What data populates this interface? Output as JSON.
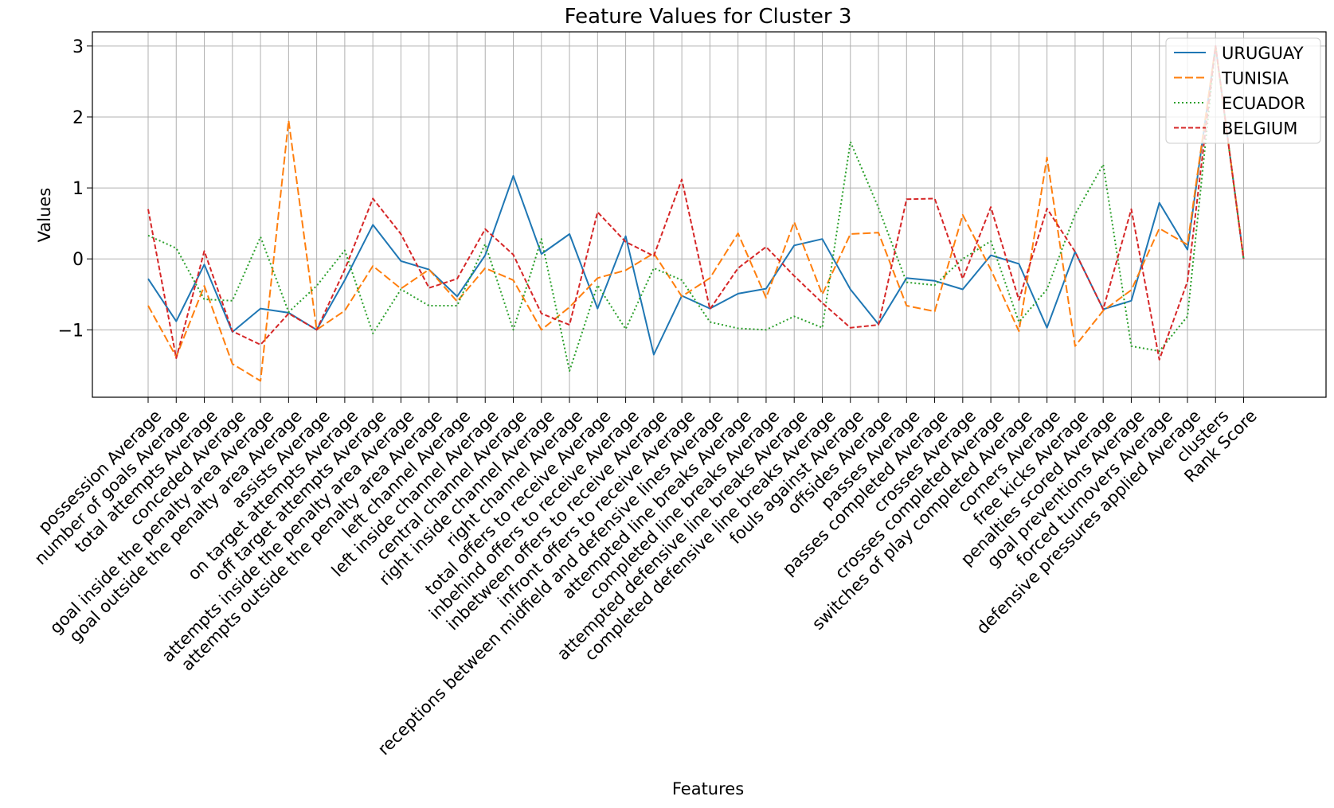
{
  "chart_data": {
    "type": "line",
    "title": "Feature Values for Cluster 3",
    "xlabel": "Features",
    "ylabel": "Values",
    "ylim": [
      -1.95,
      3.2
    ],
    "yticks": [
      -1,
      0,
      1,
      2,
      3
    ],
    "ytick_labels": [
      "−1",
      "0",
      "1",
      "2",
      "3"
    ],
    "grid": true,
    "legend_position": "top-right",
    "categories": [
      "possession Average",
      "number of goals Average",
      "total attempts Average",
      "conceded Average",
      "goal inside the penalty area Average",
      "goal outside the penalty area Average",
      "assists Average",
      "on target attempts Average",
      "off target attempts Average",
      "attempts inside the penalty area  Average",
      "attempts outside the penalty area  Average",
      "left channel Average",
      "left inside channel Average",
      "central channel Average",
      "right inside channel Average",
      "right channel Average",
      "total offers to receive Average",
      "inbehind offers to receive Average",
      "inbetween offers to receive Average",
      "infront offers to receive Average",
      "receptions between midfield and defensive lines Average",
      "attempted line breaks Average",
      "completed line breaks Average",
      "attempted defensive line breaks Average",
      "completed defensive line breaks Average",
      "fouls against Average",
      "offsides Average",
      "passes Average",
      "passes completed Average",
      "crosses Average",
      "crosses completed Average",
      "switches of play completed Average",
      "corners Average",
      "free kicks Average",
      "penalties scored Average",
      "goal preventions Average",
      "forced turnovers Average",
      "defensive pressures applied Average",
      "clusters",
      "Rank Score"
    ],
    "series": [
      {
        "name": "URUGUAY",
        "color": "#1f77b4",
        "dash": "solid",
        "values": [
          -0.28,
          -0.88,
          -0.08,
          -1.03,
          -0.7,
          -0.76,
          -1.0,
          -0.3,
          0.48,
          -0.03,
          -0.15,
          -0.53,
          0.05,
          1.17,
          0.07,
          0.35,
          -0.7,
          0.32,
          -1.35,
          -0.52,
          -0.7,
          -0.49,
          -0.42,
          0.19,
          0.28,
          -0.43,
          -0.92,
          -0.27,
          -0.31,
          -0.43,
          0.05,
          -0.07,
          -0.97,
          0.1,
          -0.71,
          -0.59,
          0.79,
          0.13,
          3.0,
          0.0
        ]
      },
      {
        "name": "TUNISIA",
        "color": "#ff7f0e",
        "dash": "dashed",
        "values": [
          -0.66,
          -1.38,
          -0.38,
          -1.48,
          -1.72,
          1.95,
          -1.0,
          -0.73,
          -0.1,
          -0.42,
          -0.15,
          -0.6,
          -0.13,
          -0.3,
          -1.0,
          -0.68,
          -0.27,
          -0.16,
          0.08,
          -0.53,
          -0.27,
          0.36,
          -0.55,
          0.52,
          -0.5,
          0.35,
          0.37,
          -0.66,
          -0.74,
          0.62,
          -0.15,
          -1.02,
          1.43,
          -1.23,
          -0.73,
          -0.44,
          0.43,
          0.2,
          3.0,
          0.0
        ]
      },
      {
        "name": "ECUADOR",
        "color": "#2ca02c",
        "dash": "dotted",
        "values": [
          0.33,
          0.15,
          -0.57,
          -0.59,
          0.31,
          -0.75,
          -0.38,
          0.12,
          -1.05,
          -0.43,
          -0.66,
          -0.66,
          0.21,
          -1.0,
          0.28,
          -1.58,
          -0.37,
          -0.99,
          -0.13,
          -0.3,
          -0.89,
          -0.98,
          -1.0,
          -0.81,
          -0.97,
          1.65,
          0.72,
          -0.33,
          -0.37,
          0.0,
          0.25,
          -0.89,
          -0.43,
          0.63,
          1.33,
          -1.23,
          -1.3,
          -0.81,
          3.0,
          0.0
        ]
      },
      {
        "name": "BELGIUM",
        "color": "#d62728",
        "dash": "densely-dashed",
        "values": [
          0.7,
          -1.4,
          0.11,
          -1.02,
          -1.21,
          -0.77,
          -1.0,
          -0.15,
          0.85,
          0.35,
          -0.41,
          -0.28,
          0.42,
          0.06,
          -0.77,
          -0.93,
          0.66,
          0.24,
          0.04,
          1.12,
          -0.71,
          -0.13,
          0.17,
          -0.24,
          -0.62,
          -0.97,
          -0.93,
          0.84,
          0.85,
          -0.28,
          0.73,
          -0.58,
          0.71,
          0.1,
          -0.71,
          0.7,
          -1.42,
          -0.32,
          3.0,
          0.0
        ]
      }
    ]
  }
}
